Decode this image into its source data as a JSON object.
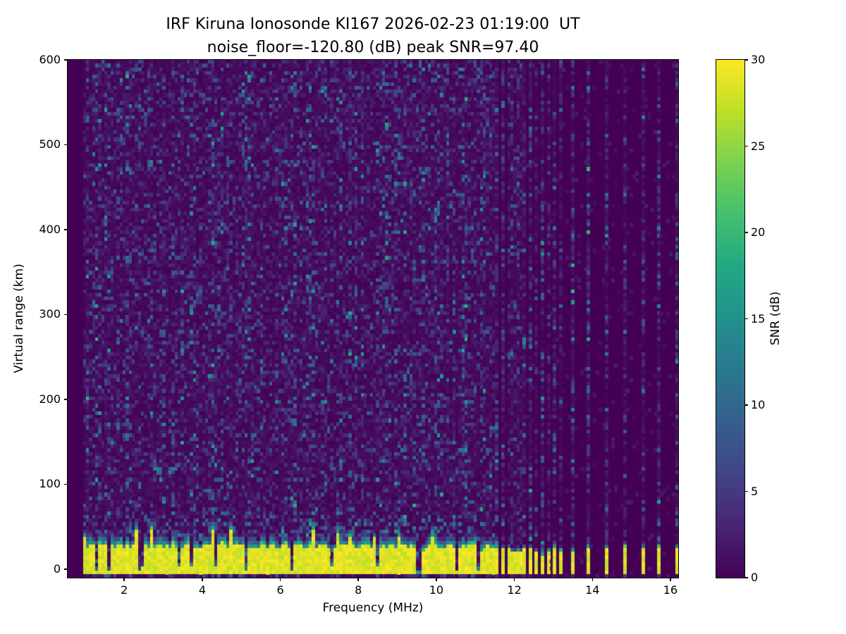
{
  "figure": {
    "background": "#ffffff",
    "spine_color": "#000000",
    "text_color": "#000000"
  },
  "chart_data": {
    "type": "heatmap",
    "title": "IRF Kiruna Ionosonde KI167 2026-02-23 01:19:00  UT",
    "subtitle": "noise_floor=-120.80 (dB) peak SNR=97.40",
    "xlabel": "Frequency (MHz)",
    "ylabel": "Virtual range (km)",
    "colorbar_label": "SNR (dB)",
    "xlim": [
      0.55,
      16.2
    ],
    "ylim": [
      -10,
      600
    ],
    "clim": [
      0,
      30
    ],
    "xticks": [
      2,
      4,
      6,
      8,
      10,
      12,
      14,
      16
    ],
    "yticks": [
      0,
      100,
      200,
      300,
      400,
      500,
      600
    ],
    "cticks": [
      0,
      5,
      10,
      15,
      20,
      25,
      30
    ],
    "legend_position": "right-colorbar",
    "grid_lines": "off",
    "colormap": "viridis",
    "colormap_stops": [
      [
        0.0,
        "#440154"
      ],
      [
        0.1,
        "#482475"
      ],
      [
        0.2,
        "#414487"
      ],
      [
        0.3,
        "#355f8d"
      ],
      [
        0.4,
        "#2a788e"
      ],
      [
        0.5,
        "#21918c"
      ],
      [
        0.6,
        "#22a884"
      ],
      [
        0.7,
        "#44bf70"
      ],
      [
        0.8,
        "#7ad151"
      ],
      [
        0.9,
        "#bddf26"
      ],
      [
        1.0,
        "#fde725"
      ]
    ],
    "grid": {
      "ncols": 200,
      "nrows": 140
    },
    "features": {
      "random_seed": 42,
      "sweep_range_mhz": [
        0.95,
        16.35
      ],
      "continuous_sweep_end_mhz": 11.62,
      "ground_echo_band_km": [
        -6.5,
        27
      ],
      "ground_echo_snr_db": 30,
      "band_transition_km": 12,
      "band_notch_freqs_mhz": [
        1.27,
        1.62,
        2.42,
        3.38,
        3.72,
        4.32,
        5.15,
        6.32,
        7.32,
        8.48,
        9.55,
        10.55,
        11.05
      ],
      "dense_stripe_start_mhz": 11.68,
      "dense_stripe_end_mhz": 13.18,
      "dense_stripe_step_mhz": 0.15,
      "sparse_stripe_freqs_mhz": [
        13.47,
        13.92,
        14.37,
        14.82,
        15.27,
        15.72,
        16.17
      ],
      "echo_streak": {
        "freq_mhz": [
          2.75,
          3.35
        ],
        "range_km": [
          114,
          122
        ],
        "snr_db": 10
      },
      "noise_speckle_max_snr_db": 14.5
    }
  }
}
